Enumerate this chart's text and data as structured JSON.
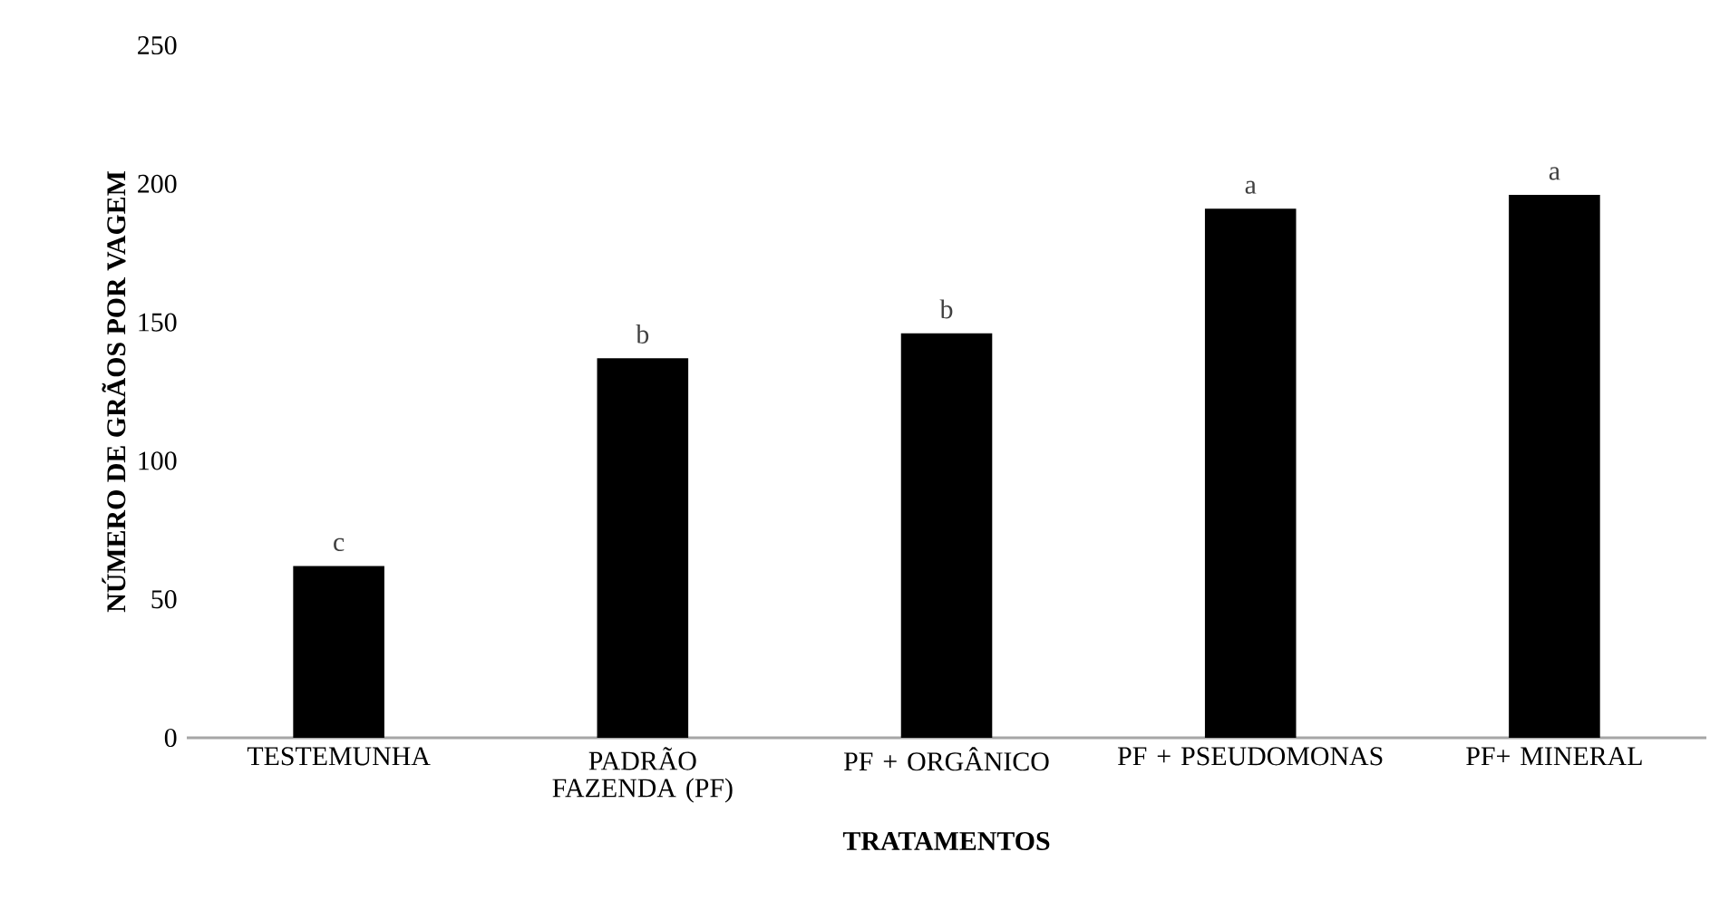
{
  "chart_data": {
    "type": "bar",
    "xlabel": "TRATAMENTOS",
    "ylabel": "NÚMERO DE GRÃOS POR VAGEM",
    "categories": [
      "TESTEMUNHA",
      "PADRÃO FAZENDA (PF)",
      "PF + ORGÂNICO",
      "PF + PSEUDOMONAS",
      "PF+ MINERAL"
    ],
    "values": [
      62,
      137,
      146,
      191,
      196
    ],
    "color": "#000000",
    "ylim": [
      0,
      250
    ],
    "yticks": [
      0,
      50,
      100,
      150,
      200,
      250
    ],
    "grid": false,
    "annotations": [
      {
        "text": "c",
        "x": "TESTEMUNHA",
        "y": 62
      },
      {
        "text": "b",
        "x": "PADRÃO FAZENDA (PF)",
        "y": 137
      },
      {
        "text": "b",
        "x": "PF + ORGÂNICO",
        "y": 146
      },
      {
        "text": "a",
        "x": "PF + PSEUDOMONAS",
        "y": 191
      },
      {
        "text": "a",
        "x": "PF+ MINERAL",
        "y": 196
      }
    ]
  }
}
